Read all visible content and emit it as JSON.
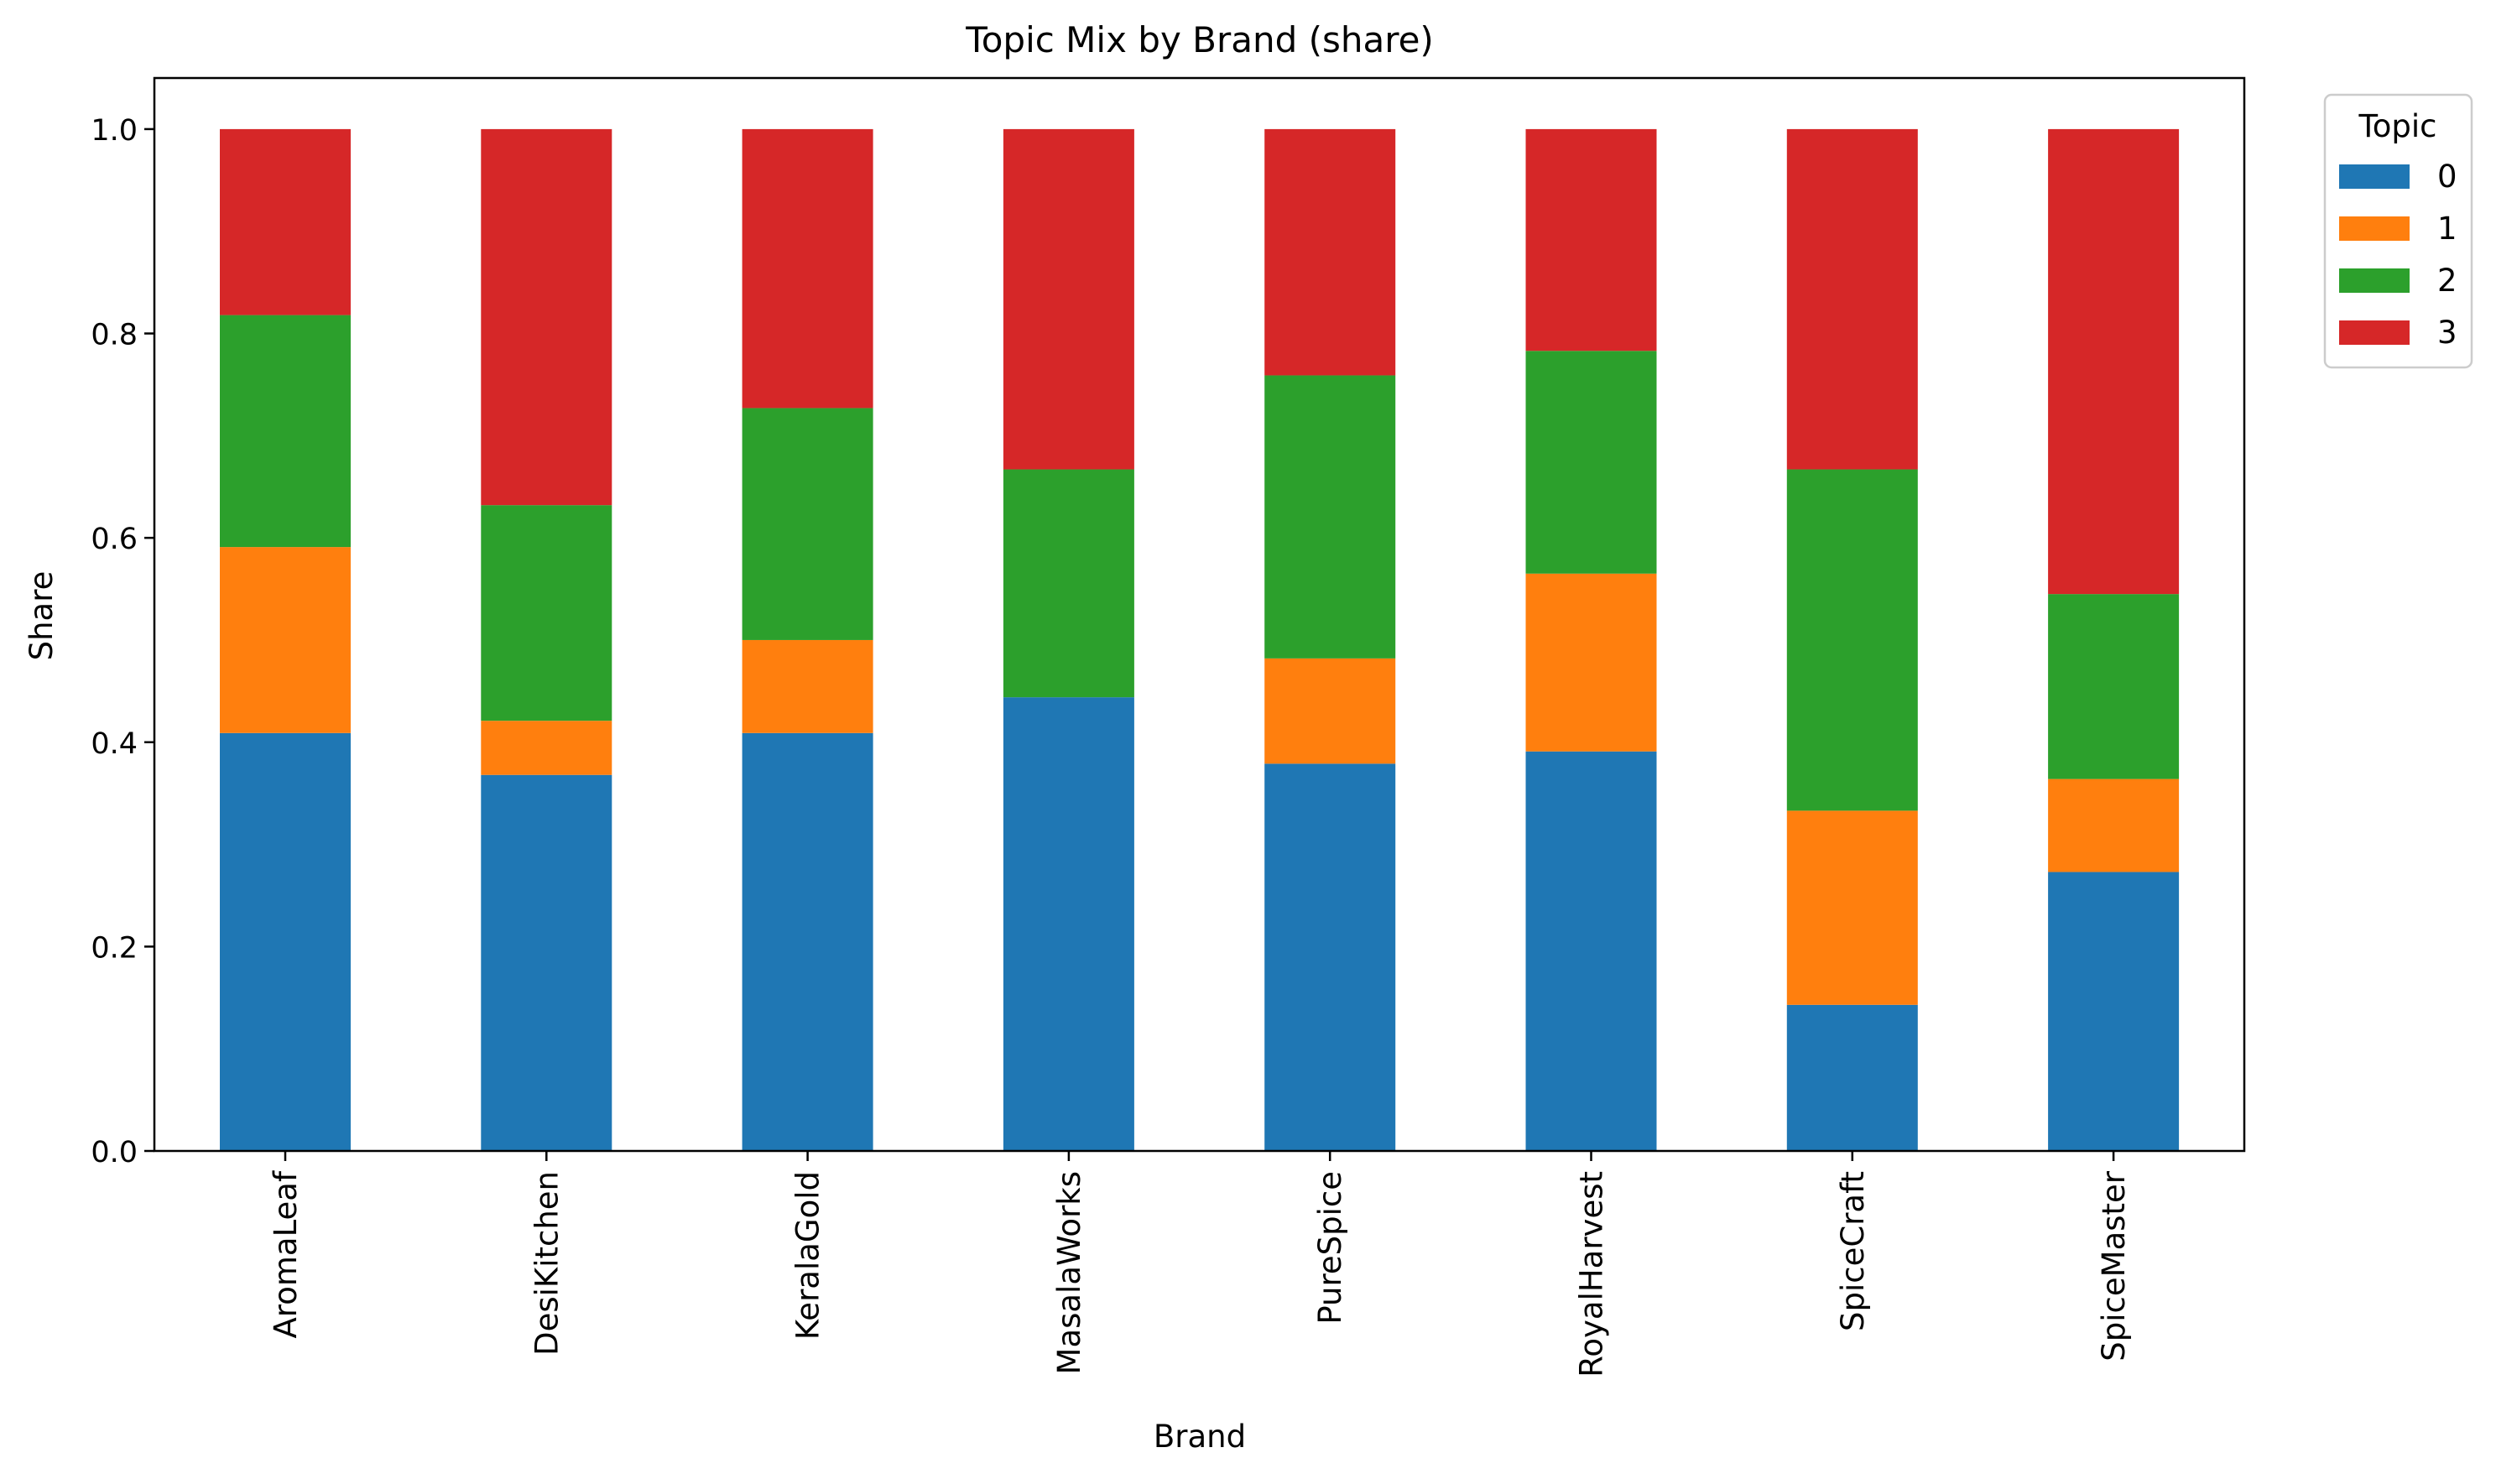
{
  "chart_data": {
    "type": "bar",
    "stacked": true,
    "title": "Topic Mix by Brand (share)",
    "xlabel": "Brand",
    "ylabel": "Share",
    "ylim": [
      0,
      1.05
    ],
    "yticks": [
      0.0,
      0.2,
      0.4,
      0.6,
      0.8,
      1.0
    ],
    "ytick_labels": [
      "0.0",
      "0.2",
      "0.4",
      "0.6",
      "0.8",
      "1.0"
    ],
    "grid": false,
    "categories": [
      "AromaLeaf",
      "DesiKitchen",
      "KeralaGold",
      "MasalaWorks",
      "PureSpice",
      "RoyalHarvest",
      "SpiceCraft",
      "SpiceMaster"
    ],
    "legend": {
      "title": "Topic",
      "placement": "outside-top-right"
    },
    "series": [
      {
        "name": "0",
        "color": "#1f77b4",
        "values": [
          0.409,
          0.368,
          0.409,
          0.444,
          0.379,
          0.391,
          0.143,
          0.273
        ]
      },
      {
        "name": "1",
        "color": "#ff7f0e",
        "values": [
          0.182,
          0.053,
          0.091,
          0.0,
          0.103,
          0.174,
          0.19,
          0.091
        ]
      },
      {
        "name": "2",
        "color": "#2ca02c",
        "values": [
          0.227,
          0.211,
          0.227,
          0.223,
          0.277,
          0.218,
          0.334,
          0.181
        ]
      },
      {
        "name": "3",
        "color": "#d62728",
        "values": [
          0.182,
          0.368,
          0.273,
          0.333,
          0.241,
          0.217,
          0.333,
          0.455
        ]
      }
    ]
  }
}
